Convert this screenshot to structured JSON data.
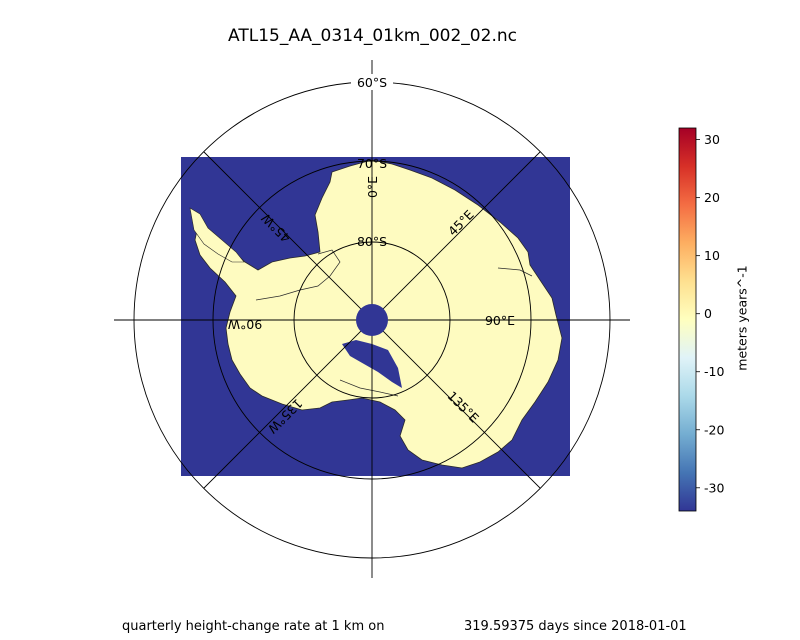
{
  "figure": {
    "title": "ATL15_AA_0314_01km_002_02.nc",
    "caption_left": "quarterly height-change rate at 1 km on",
    "caption_right": "319.59375 days since 2018-01-01"
  },
  "map": {
    "projection": "south polar stereographic",
    "latitude_labels": [
      "60°S",
      "70°S",
      "80°S"
    ],
    "longitude_labels": [
      "0°E",
      "45°E",
      "90°E",
      "135°E",
      "45°W",
      "90°W",
      "135°W"
    ],
    "ocean_color": "#313695",
    "ice_color": "#fefbc0",
    "pole_color": "#313695"
  },
  "colorbar": {
    "label": "meters years^-1",
    "ticks": [
      "30",
      "20",
      "10",
      "0",
      "-10",
      "-20",
      "-30"
    ],
    "tick_values": [
      30,
      20,
      10,
      0,
      -10,
      -20,
      -30
    ],
    "range": [
      -34,
      32
    ],
    "colormap": "RdYlBu_r",
    "colors": [
      "#313695",
      "#4575b4",
      "#74add1",
      "#abd9e9",
      "#e0f3f8",
      "#ffffbf",
      "#fee090",
      "#fdae61",
      "#f46d43",
      "#d73027",
      "#a50026"
    ]
  }
}
